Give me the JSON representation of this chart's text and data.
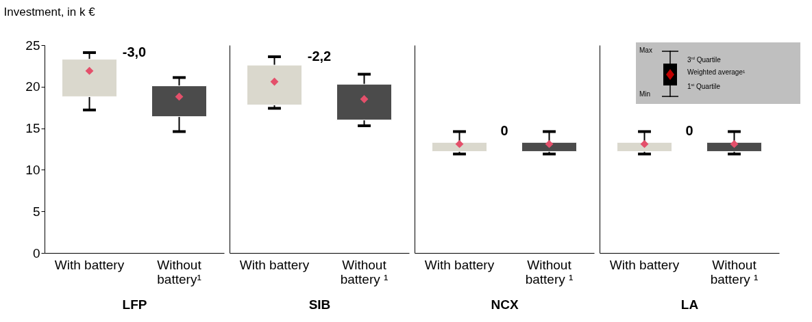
{
  "chart_data": [
    {
      "type": "box",
      "ylabel": "Investment, in k €",
      "xlabel": "LFP",
      "categories": [
        "With battery",
        "Without battery¹"
      ],
      "colors": [
        "#dad8cd",
        "#4b4b4b"
      ],
      "marker": "diamond",
      "ylim": [
        0,
        25
      ],
      "yticks": [
        0,
        5,
        10,
        15,
        20,
        25
      ],
      "boxes": [
        {
          "low": 17.2,
          "q1": 18.8,
          "q3": 23.3,
          "high": 24.1,
          "mean": 21.9
        },
        {
          "low": 14.6,
          "q1": 16.4,
          "q3": 20.1,
          "high": 21.1,
          "mean": 18.8
        }
      ],
      "annotations": [
        "-3,0"
      ]
    },
    {
      "type": "box",
      "xlabel": "SIB",
      "categories": [
        "With battery",
        "Without battery ¹"
      ],
      "colors": [
        "#dad8cd",
        "#4b4b4b"
      ],
      "marker": "diamond",
      "ylim": [
        0,
        25
      ],
      "yticks": [
        0,
        5,
        10,
        15,
        20,
        25
      ],
      "tick_labels": "x",
      "boxes": [
        {
          "low": 17.4,
          "q1": 17.8,
          "q3": 22.6,
          "high": 23.6,
          "mean": 20.6
        },
        {
          "low": 15.3,
          "q1": 16.0,
          "q3": 20.3,
          "high": 21.5,
          "mean": 18.5
        }
      ],
      "annotations": [
        "-2,2"
      ]
    },
    {
      "type": "box",
      "xlabel": "NCX",
      "categories": [
        "With battery",
        "Without battery ¹"
      ],
      "colors": [
        "#dad8cd",
        "#4b4b4b"
      ],
      "marker": "diamond",
      "ylim": [
        0,
        25
      ],
      "yticks": [
        0,
        5,
        10,
        15,
        20,
        25
      ],
      "tick_labels": "x",
      "boxes": [
        {
          "low": 11.9,
          "q1": 12.2,
          "q3": 13.3,
          "high": 14.6,
          "mean": 13.1
        },
        {
          "low": 11.9,
          "q1": 12.2,
          "q3": 13.3,
          "high": 14.6,
          "mean": 13.1
        }
      ],
      "annotations": [
        "0"
      ]
    },
    {
      "type": "box",
      "xlabel": "LA",
      "categories": [
        "With battery",
        "Without battery ¹"
      ],
      "colors": [
        "#dad8cd",
        "#4b4b4b"
      ],
      "marker": "diamond",
      "ylim": [
        0,
        25
      ],
      "yticks": [
        0,
        5,
        10,
        15,
        20,
        25
      ],
      "tick_labels": "x",
      "boxes": [
        {
          "low": 11.9,
          "q1": 12.2,
          "q3": 13.3,
          "high": 14.6,
          "mean": 13.1
        },
        {
          "low": 11.9,
          "q1": 12.2,
          "q3": 13.3,
          "high": 14.6,
          "mean": 13.1
        }
      ],
      "annotations": [
        "0",
        "Max",
        "3$^{rd}$ Quartile",
        "Weighted average¹",
        "1$^{st}$ Quartile",
        "Min"
      ]
    }
  ]
}
